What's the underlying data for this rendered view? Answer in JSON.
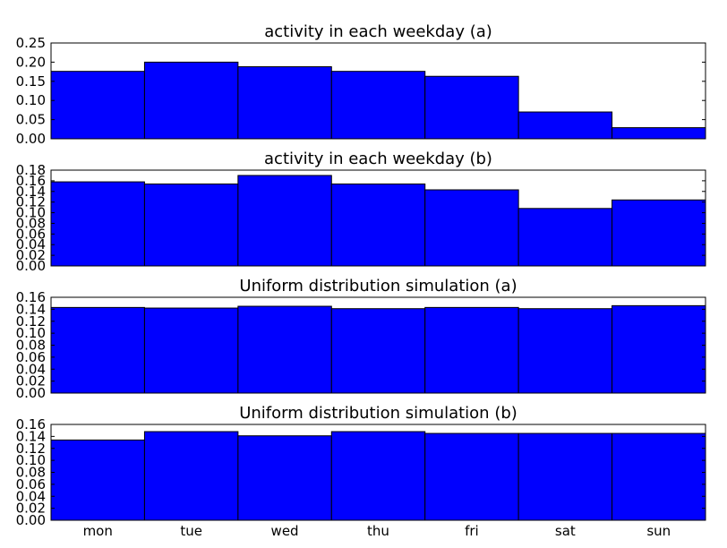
{
  "figure": {
    "background": "#ffffff",
    "bar_color": "#0000ff",
    "edge_color": "#000000"
  },
  "chart_data": [
    {
      "type": "bar",
      "title": "activity in each weekday (a)",
      "categories": [
        "mon",
        "tue",
        "wed",
        "thu",
        "fri",
        "sat",
        "sun"
      ],
      "show_category_labels": false,
      "values": [
        0.176,
        0.2,
        0.188,
        0.176,
        0.163,
        0.07,
        0.029
      ],
      "ylim": [
        0,
        0.25
      ],
      "yticks": [
        "0.00",
        "0.05",
        "0.10",
        "0.15",
        "0.20",
        "0.25"
      ],
      "xlabel": "",
      "ylabel": "",
      "grid": false,
      "legend": "none"
    },
    {
      "type": "bar",
      "title": "activity in each weekday (b)",
      "categories": [
        "mon",
        "tue",
        "wed",
        "thu",
        "fri",
        "sat",
        "sun"
      ],
      "show_category_labels": false,
      "values": [
        0.158,
        0.154,
        0.17,
        0.154,
        0.143,
        0.108,
        0.124
      ],
      "ylim": [
        0,
        0.18
      ],
      "yticks": [
        "0.00",
        "0.02",
        "0.04",
        "0.06",
        "0.08",
        "0.10",
        "0.12",
        "0.14",
        "0.16",
        "0.18"
      ],
      "xlabel": "",
      "ylabel": "",
      "grid": false,
      "legend": "none"
    },
    {
      "type": "bar",
      "title": "Uniform distribution simulation (a)",
      "categories": [
        "mon",
        "tue",
        "wed",
        "thu",
        "fri",
        "sat",
        "sun"
      ],
      "show_category_labels": false,
      "values": [
        0.143,
        0.142,
        0.145,
        0.141,
        0.143,
        0.141,
        0.146
      ],
      "ylim": [
        0,
        0.16
      ],
      "yticks": [
        "0.00",
        "0.02",
        "0.04",
        "0.06",
        "0.08",
        "0.10",
        "0.12",
        "0.14",
        "0.16"
      ],
      "xlabel": "",
      "ylabel": "",
      "grid": false,
      "legend": "none"
    },
    {
      "type": "bar",
      "title": "Uniform distribution simulation (b)",
      "categories": [
        "mon",
        "tue",
        "wed",
        "thu",
        "fri",
        "sat",
        "sun"
      ],
      "show_category_labels": true,
      "values": [
        0.134,
        0.148,
        0.141,
        0.148,
        0.145,
        0.145,
        0.145
      ],
      "ylim": [
        0,
        0.16
      ],
      "yticks": [
        "0.00",
        "0.02",
        "0.04",
        "0.06",
        "0.08",
        "0.10",
        "0.12",
        "0.14",
        "0.16"
      ],
      "xlabel": "",
      "ylabel": "",
      "grid": false,
      "legend": "none"
    }
  ]
}
